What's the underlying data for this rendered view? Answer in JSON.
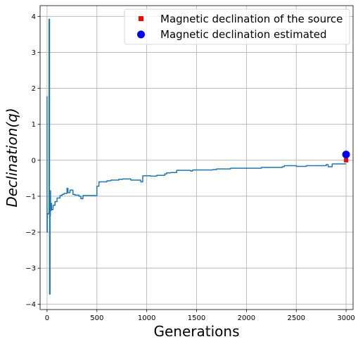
{
  "chart_data": {
    "type": "line",
    "title": "",
    "xlabel": "Generations",
    "ylabel": "Declination(q)",
    "xlim": [
      -70,
      3070
    ],
    "ylim": [
      -4.15,
      4.3
    ],
    "xticks": [
      0,
      500,
      1000,
      1500,
      2000,
      2500,
      3000
    ],
    "yticks": [
      -4,
      -3,
      -2,
      -1,
      0,
      1,
      2,
      3,
      4
    ],
    "xtick_labels": [
      "0",
      "500",
      "1000",
      "1500",
      "2000",
      "2500",
      "3000"
    ],
    "ytick_labels": [
      "−4",
      "−3",
      "−2",
      "−1",
      "0",
      "1",
      "2",
      "3",
      "4"
    ],
    "grid": true,
    "legend_position": "top-right",
    "series": [
      {
        "type": "step-line",
        "color": "#1f77b4",
        "x": [
          0,
          0,
          2,
          2,
          10,
          10,
          20,
          20,
          25,
          25,
          30,
          30,
          33,
          33,
          35,
          35,
          38,
          38,
          40,
          40,
          45,
          45,
          50,
          50,
          60,
          60,
          80,
          80,
          100,
          100,
          130,
          130,
          150,
          150,
          170,
          170,
          200,
          200,
          210,
          210,
          230,
          230,
          260,
          260,
          280,
          280,
          320,
          320,
          340,
          340,
          360,
          360,
          500,
          500,
          520,
          520,
          600,
          600,
          640,
          640,
          720,
          720,
          760,
          760,
          840,
          840,
          940,
          940,
          960,
          960,
          1040,
          1040,
          1100,
          1100,
          1180,
          1180,
          1200,
          1200,
          1240,
          1240,
          1300,
          1300,
          1440,
          1440,
          1460,
          1460,
          1660,
          1660,
          1700,
          1700,
          1840,
          1840,
          2000,
          2000,
          2150,
          2150,
          2360,
          2360,
          2380,
          2380,
          2500,
          2500,
          2600,
          2600,
          2800,
          2800,
          2820,
          2820,
          2860,
          2860,
          3000
        ],
        "y": [
          1.78,
          -2.0,
          -2.0,
          -1.5,
          -1.5,
          -1.48,
          -1.48,
          3.92,
          3.92,
          -3.72,
          -3.72,
          -1.55,
          -1.55,
          -0.85,
          -0.85,
          -1.4,
          -1.4,
          -1.38,
          -1.38,
          -1.2,
          -1.2,
          -1.38,
          -1.38,
          -1.37,
          -1.37,
          -1.25,
          -1.25,
          -1.15,
          -1.15,
          -1.05,
          -1.05,
          -0.98,
          -0.98,
          -0.95,
          -0.95,
          -0.92,
          -0.92,
          -0.78,
          -0.78,
          -0.9,
          -0.9,
          -0.83,
          -0.83,
          -0.95,
          -0.95,
          -0.97,
          -0.97,
          -1.0,
          -1.0,
          -1.07,
          -1.07,
          -0.98,
          -0.98,
          -0.72,
          -0.72,
          -0.6,
          -0.6,
          -0.57,
          -0.57,
          -0.55,
          -0.55,
          -0.53,
          -0.53,
          -0.52,
          -0.52,
          -0.55,
          -0.55,
          -0.6,
          -0.6,
          -0.43,
          -0.43,
          -0.44,
          -0.44,
          -0.42,
          -0.42,
          -0.38,
          -0.38,
          -0.35,
          -0.35,
          -0.34,
          -0.34,
          -0.28,
          -0.28,
          -0.3,
          -0.3,
          -0.27,
          -0.27,
          -0.26,
          -0.26,
          -0.24,
          -0.24,
          -0.22,
          -0.22,
          -0.22,
          -0.22,
          -0.2,
          -0.2,
          -0.18,
          -0.18,
          -0.15,
          -0.15,
          -0.17,
          -0.17,
          -0.15,
          -0.15,
          -0.12,
          -0.12,
          -0.18,
          -0.18,
          -0.1,
          -0.1
        ]
      }
    ],
    "points": [
      {
        "name": "Magnetic declination of the source",
        "x": 3000,
        "y": 0.0,
        "marker": "square",
        "color": "#ff0000"
      },
      {
        "name": "Magnetic declination estimated",
        "x": 3000,
        "y": 0.16,
        "marker": "circle",
        "color": "#0000ff"
      }
    ],
    "legend": [
      {
        "label": "Magnetic declination of the source",
        "marker": "square",
        "color": "#ff0000"
      },
      {
        "label": "Magnetic declination estimated",
        "marker": "circle",
        "color": "#0000ff"
      }
    ]
  }
}
